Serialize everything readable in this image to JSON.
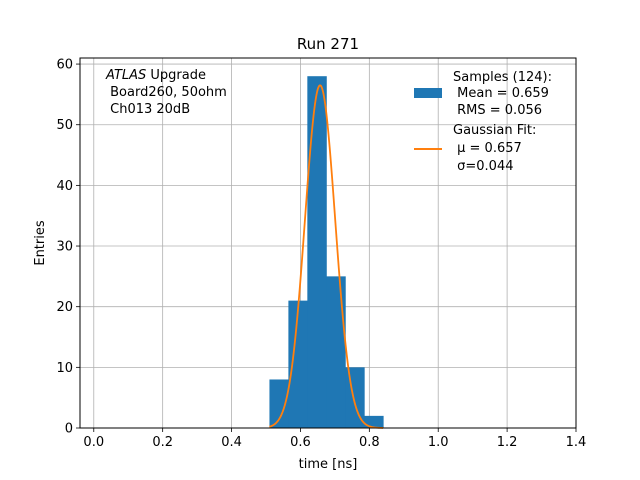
{
  "chart_data": {
    "type": "bar",
    "title": "Run 271",
    "xlabel": "time [ns]",
    "ylabel": "Entries",
    "xlim": [
      -0.04,
      1.4
    ],
    "ylim": [
      0,
      61
    ],
    "xticks": [
      0.0,
      0.2,
      0.4,
      0.6,
      0.8,
      1.0,
      1.2,
      1.4
    ],
    "xtick_labels": [
      "0.0",
      "0.2",
      "0.4",
      "0.6",
      "0.8",
      "1.0",
      "1.2",
      "1.4"
    ],
    "yticks": [
      0,
      10,
      20,
      30,
      40,
      50,
      60
    ],
    "ytick_labels": [
      "0",
      "10",
      "20",
      "30",
      "40",
      "50",
      "60"
    ],
    "grid": true,
    "annotation": {
      "line1_italic": "ATLAS",
      "line1_rest": " Upgrade",
      "line2": " Board260, 50ohm",
      "line3": " Ch013 20dB"
    },
    "legend": {
      "placement": "top-right",
      "histogram": {
        "line1": "Samples (124):",
        "line2": " Mean = 0.659",
        "line3": " RMS = 0.056",
        "color": "#1f77b4"
      },
      "fit": {
        "line1": "Gaussian Fit:",
        "line2": " μ = 0.657",
        "line3": " σ=0.044",
        "color": "#ff7f0e"
      }
    },
    "histogram": {
      "name": "Samples",
      "bin_edges": [
        0.51,
        0.565,
        0.62,
        0.675,
        0.73,
        0.785,
        0.84
      ],
      "values": [
        8,
        21,
        58,
        25,
        10,
        2
      ],
      "color": "#1f77b4"
    },
    "fit": {
      "name": "Gaussian Fit",
      "mu": 0.657,
      "sigma": 0.044,
      "amplitude": 56.5,
      "x_range": [
        0.51,
        0.84
      ],
      "color": "#ff7f0e"
    }
  }
}
